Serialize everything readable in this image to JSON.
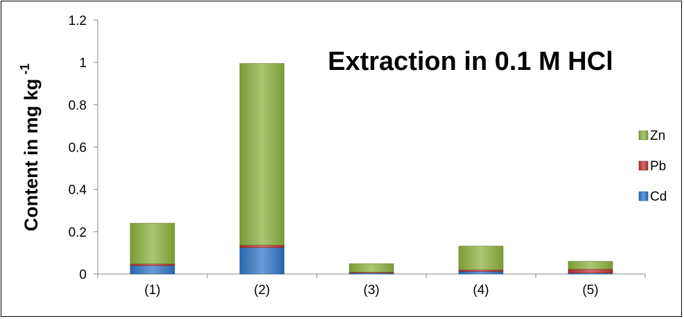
{
  "chart_data": {
    "type": "bar",
    "stacked": true,
    "title": "Extraction in 0.1 M HCl",
    "ylabel": "Content in mg kg",
    "ylabel_superscript": "-1",
    "xlabel": "",
    "categories": [
      "(1)",
      "(2)",
      "(3)",
      "(4)",
      "(5)"
    ],
    "ylim": [
      0,
      1.2
    ],
    "yticks": [
      "0",
      "0.2",
      "0.4",
      "0.6",
      "0.8",
      "1",
      "1.2"
    ],
    "grid": false,
    "legend_position": "right",
    "series": [
      {
        "name": "Cd",
        "color": "#2E75C6",
        "values": [
          0.04,
          0.125,
          0.005,
          0.012,
          0.005
        ]
      },
      {
        "name": "Pb",
        "color": "#C0312E",
        "values": [
          0.008,
          0.012,
          0.004,
          0.008,
          0.018
        ]
      },
      {
        "name": "Zn",
        "color": "#8DB03D",
        "values": [
          0.192,
          0.858,
          0.04,
          0.112,
          0.037
        ]
      }
    ],
    "legend_order": [
      "Zn",
      "Pb",
      "Cd"
    ]
  }
}
